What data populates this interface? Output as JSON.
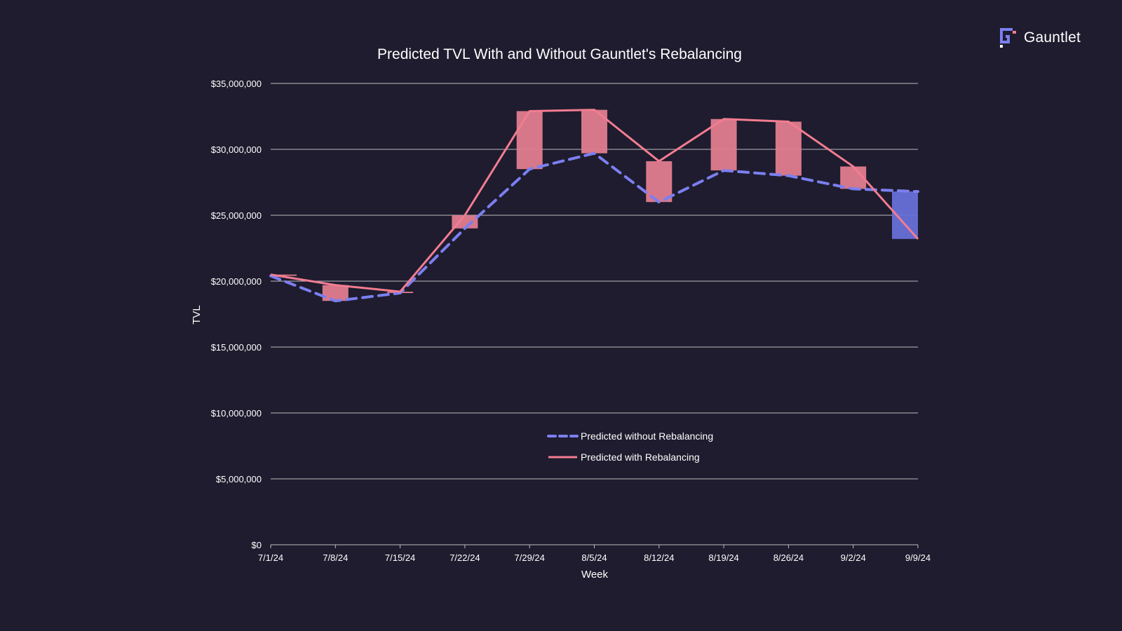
{
  "brand": {
    "name": "Gauntlet",
    "accent": "#7b7ff0",
    "accent_secondary": "#f27c91",
    "icon": "gauntlet-logo-icon"
  },
  "colors": {
    "background": "#1e1c2e",
    "gridline": "#bdbdbd",
    "text": "#ffffff",
    "without": "#7b7ff0",
    "with": "#f27c91",
    "gain_bar": "#e07d8f",
    "loss_bar": "#6770d8"
  },
  "chart_data": {
    "type": "line",
    "title": "Predicted TVL With and Without Gauntlet's Rebalancing",
    "xlabel": "Week",
    "ylabel": "TVL",
    "categories": [
      "7/1/24",
      "7/8/24",
      "7/15/24",
      "7/22/24",
      "7/29/24",
      "8/5/24",
      "8/12/24",
      "8/19/24",
      "8/26/24",
      "9/2/24",
      "9/9/24"
    ],
    "yticks": [
      "$0",
      "$5,000,000",
      "$10,000,000",
      "$15,000,000",
      "$20,000,000",
      "$25,000,000",
      "$30,000,000",
      "$35,000,000"
    ],
    "ylim": [
      0,
      35000000
    ],
    "grid": true,
    "legend_position": "center-bottom",
    "series": [
      {
        "name": "Predicted without Rebalancing",
        "style": "dashed",
        "values": [
          20400000,
          18500000,
          19100000,
          24000000,
          28500000,
          29700000,
          26000000,
          28400000,
          28000000,
          27000000,
          26800000
        ]
      },
      {
        "name": "Predicted with Rebalancing",
        "style": "solid",
        "values": [
          20500000,
          19700000,
          19200000,
          25000000,
          32900000,
          33000000,
          29100000,
          32300000,
          32100000,
          28700000,
          23200000
        ]
      }
    ],
    "difference_bars": "floating bars spanning between the two series at each week; pink where rebalancing is higher, blue where lower"
  }
}
